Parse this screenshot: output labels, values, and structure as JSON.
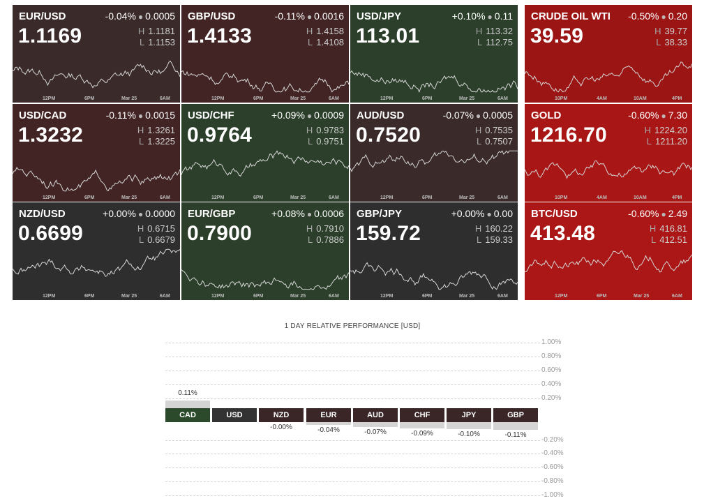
{
  "tiles": [
    {
      "symbol": "EUR/USD",
      "change_pct": "-0.04%",
      "change_abs": "0.0005",
      "price": "1.1169",
      "high": "1.1181",
      "low": "1.1153",
      "bg": "#3a2a2a",
      "ticks": [
        "12PM",
        "6PM",
        "Mar 25",
        "6AM"
      ],
      "trend": 0.1
    },
    {
      "symbol": "GBP/USD",
      "change_pct": "-0.11%",
      "change_abs": "0.0016",
      "price": "1.4133",
      "high": "1.4158",
      "low": "1.4108",
      "bg": "#422424",
      "ticks": [
        "12PM",
        "6PM",
        "Mar 25",
        "6AM"
      ],
      "trend": -0.2
    },
    {
      "symbol": "USD/JPY",
      "change_pct": "+0.10%",
      "change_abs": "0.11",
      "price": "113.01",
      "high": "113.32",
      "low": "112.75",
      "bg": "#2b3f2b",
      "ticks": [
        "12PM",
        "6PM",
        "Mar 25",
        "6AM"
      ],
      "trend": 0.5
    },
    {
      "symbol": "CRUDE OIL WTI",
      "change_pct": "-0.50%",
      "change_abs": "0.20",
      "price": "39.59",
      "high": "39.77",
      "low": "38.33",
      "bg": "#9b1515",
      "ticks": [
        "10PM",
        "4AM",
        "10AM",
        "4PM"
      ],
      "trend": -0.3
    },
    {
      "symbol": "USD/CAD",
      "change_pct": "-0.11%",
      "change_abs": "0.0015",
      "price": "1.3232",
      "high": "1.3261",
      "low": "1.3225",
      "bg": "#422424",
      "ticks": [
        "12PM",
        "6PM",
        "Mar 25",
        "6AM"
      ],
      "trend": -0.6
    },
    {
      "symbol": "USD/CHF",
      "change_pct": "+0.09%",
      "change_abs": "0.0009",
      "price": "0.9764",
      "high": "0.9783",
      "low": "0.9751",
      "bg": "#2b3f2b",
      "ticks": [
        "12PM",
        "6PM",
        "Mar 25",
        "6AM"
      ],
      "trend": 0.4
    },
    {
      "symbol": "AUD/USD",
      "change_pct": "-0.07%",
      "change_abs": "0.0005",
      "price": "0.7520",
      "high": "0.7535",
      "low": "0.7507",
      "bg": "#3a2a2a",
      "ticks": [
        "12PM",
        "6PM",
        "Mar 25",
        "6AM"
      ],
      "trend": 0.5
    },
    {
      "symbol": "GOLD",
      "change_pct": "-0.60%",
      "change_abs": "7.30",
      "price": "1216.70",
      "high": "1224.20",
      "low": "1211.20",
      "bg": "#a81616",
      "ticks": [
        "10PM",
        "4AM",
        "10AM",
        "4PM"
      ],
      "trend": -0.1
    },
    {
      "symbol": "NZD/USD",
      "change_pct": "+0.00%",
      "change_abs": "0.0000",
      "price": "0.6699",
      "high": "0.6715",
      "low": "0.6679",
      "bg": "#2e2e2e",
      "ticks": [
        "12PM",
        "6PM",
        "Mar 25",
        "6AM"
      ],
      "trend": 0.1
    },
    {
      "symbol": "EUR/GBP",
      "change_pct": "+0.08%",
      "change_abs": "0.0006",
      "price": "0.7900",
      "high": "0.7910",
      "low": "0.7886",
      "bg": "#2b3f2b",
      "ticks": [
        "12PM",
        "6PM",
        "Mar 25",
        "6AM"
      ],
      "trend": 0.3
    },
    {
      "symbol": "GBP/JPY",
      "change_pct": "+0.00%",
      "change_abs": "0.00",
      "price": "159.72",
      "high": "160.22",
      "low": "159.33",
      "bg": "#2e2e2e",
      "ticks": [
        "12PM",
        "6PM",
        "Mar 25",
        "6AM"
      ],
      "trend": 0.5
    },
    {
      "symbol": "BTC/USD",
      "change_pct": "-0.60%",
      "change_abs": "2.49",
      "price": "413.48",
      "high": "416.81",
      "low": "412.51",
      "bg": "#ab1717",
      "ticks": [
        "12PM",
        "6PM",
        "Mar 25",
        "6AM"
      ],
      "trend": 0.0
    }
  ],
  "performance": {
    "title": "1 DAY RELATIVE PERFORMANCE  [USD]",
    "y_labels_pos": [
      "1.00%",
      "0.80%",
      "0.60%",
      "0.40%",
      "0.20%"
    ],
    "y_labels_neg": [
      "-0.20%",
      "-0.40%",
      "-0.60%",
      "-0.80%",
      "-1.00%"
    ],
    "chart_data": {
      "type": "bar",
      "title": "1 DAY RELATIVE PERFORMANCE  [USD]",
      "categories": [
        "CAD",
        "USD",
        "NZD",
        "EUR",
        "AUD",
        "CHF",
        "JPY",
        "GBP"
      ],
      "values": [
        0.11,
        0.0,
        -0.0,
        -0.04,
        -0.07,
        -0.09,
        -0.1,
        -0.11
      ],
      "value_labels": [
        "0.11%",
        "",
        "-0.00%",
        "-0.04%",
        "-0.07%",
        "-0.09%",
        "-0.10%",
        "-0.11%"
      ],
      "category_colors": [
        "#2b4a2b",
        "#333333",
        "#3a2626",
        "#3a2626",
        "#3a2626",
        "#3a2626",
        "#3a2626",
        "#3a2626"
      ],
      "ylim": [
        -1.0,
        1.0
      ]
    }
  }
}
